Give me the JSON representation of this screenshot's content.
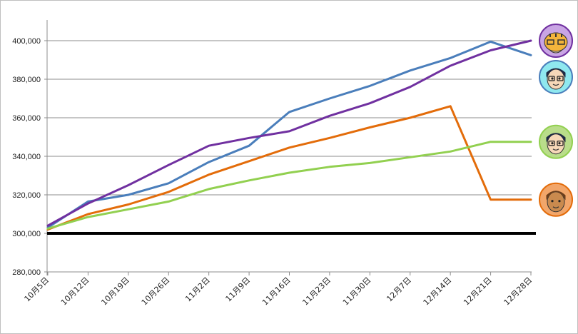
{
  "chart_data": {
    "type": "line",
    "title": "",
    "xlabel": "",
    "ylabel": "",
    "categories": [
      "10月5日",
      "10月12日",
      "10月19日",
      "10月26日",
      "11月2日",
      "11月9日",
      "11月16日",
      "11月23日",
      "11月30日",
      "12月7日",
      "12月14日",
      "12月21日",
      "12月28日"
    ],
    "ylim": [
      280000,
      410000
    ],
    "yticks": [
      280000,
      300000,
      320000,
      340000,
      360000,
      380000,
      400000
    ],
    "ytick_labels": [
      "280,000",
      "300,000",
      "320,000",
      "340,000",
      "360,000",
      "380,000",
      "400,000"
    ],
    "grid": true,
    "baseline": {
      "value": 300000,
      "color": "#000000"
    },
    "series": [
      {
        "color": "#4a7ebb",
        "avatar": "blue-avatar-icon",
        "values": [
          303000,
          316500,
          320000,
          326000,
          337000,
          345500,
          363000,
          370000,
          376500,
          384500,
          391000,
          399500,
          392500
        ]
      },
      {
        "color": "#7030a0",
        "avatar": "purple-avatar-icon",
        "values": [
          304000,
          315500,
          325000,
          335500,
          345500,
          349500,
          353000,
          361000,
          367500,
          376000,
          387000,
          395000,
          400000
        ]
      },
      {
        "color": "#e36c0a",
        "avatar": "orange-avatar-icon",
        "values": [
          302000,
          310000,
          315000,
          321500,
          330500,
          337500,
          344500,
          349500,
          355000,
          360000,
          366000,
          317500,
          317500
        ]
      },
      {
        "color": "#92d050",
        "avatar": "green-avatar-icon",
        "values": [
          302500,
          308500,
          312500,
          316500,
          323000,
          327500,
          331500,
          334500,
          336500,
          339500,
          342500,
          347500,
          347500
        ]
      }
    ]
  }
}
